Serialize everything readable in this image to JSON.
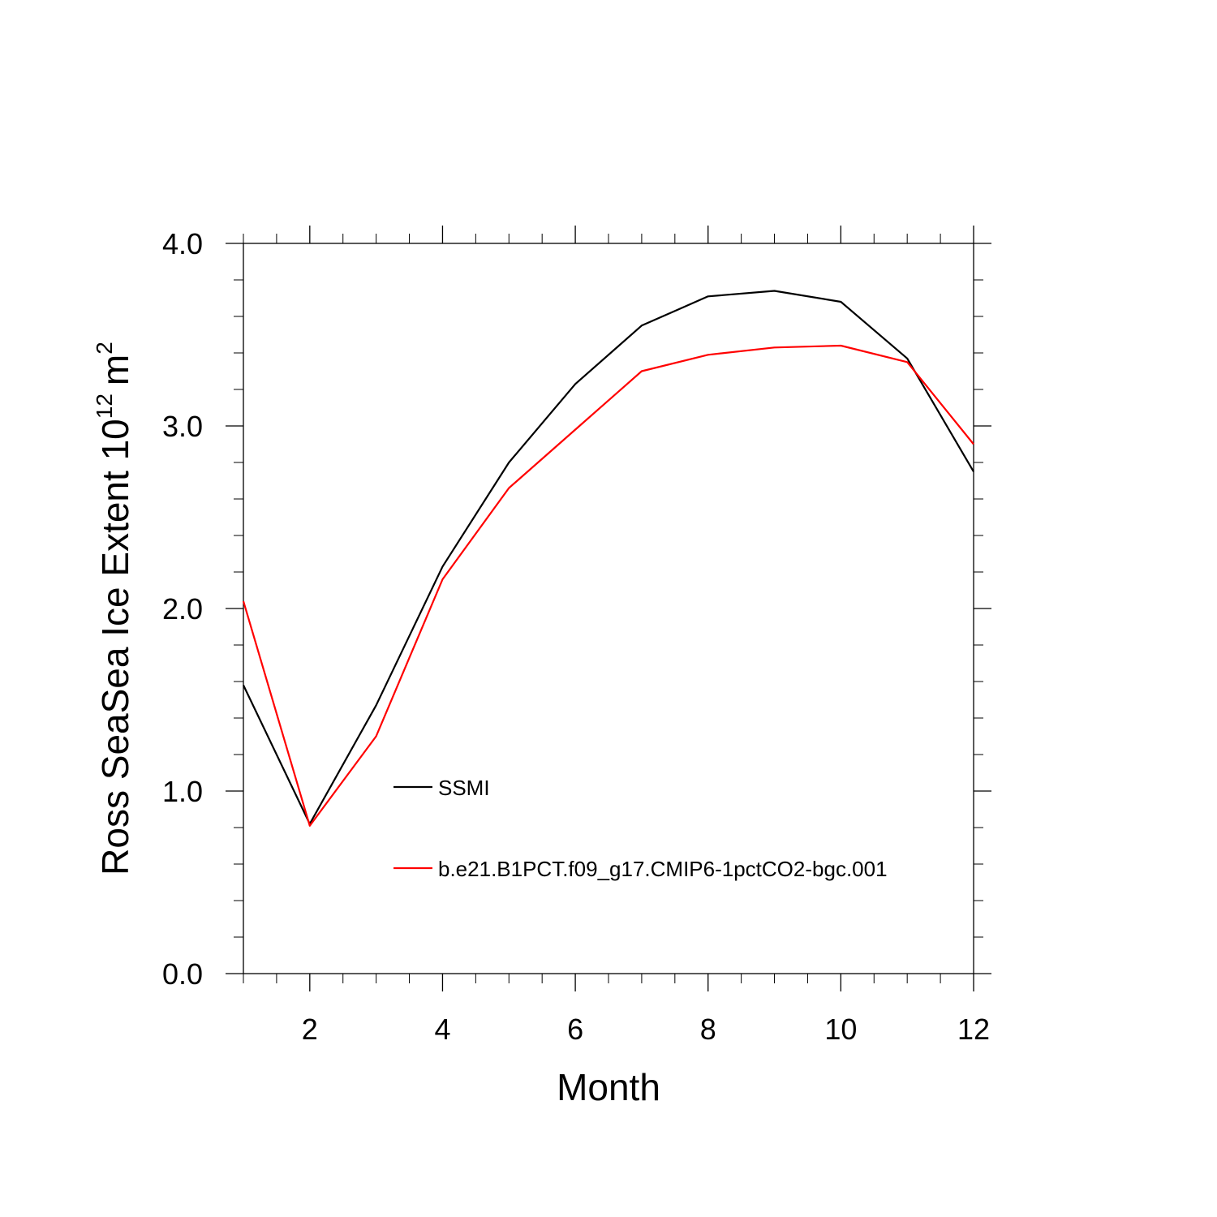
{
  "chart_data": {
    "type": "line",
    "title": "",
    "xlabel": "Month",
    "ylabel": {
      "main": "Ross SeaSea Ice Extent 10",
      "exponent": "12",
      "unit": "m",
      "unit_exponent": "2"
    },
    "xlim": [
      1,
      12
    ],
    "ylim": [
      0,
      4
    ],
    "xticks": [
      2,
      4,
      6,
      8,
      10,
      12
    ],
    "xtick_labels": [
      "2",
      "4",
      "6",
      "8",
      "10",
      "12"
    ],
    "yticks": [
      0,
      1,
      2,
      3,
      4
    ],
    "ytick_labels": [
      "0.0",
      "1.0",
      "2.0",
      "3.0",
      "4.0"
    ],
    "grid": false,
    "legend_position": "center",
    "x": [
      1,
      2,
      3,
      4,
      5,
      6,
      7,
      8,
      9,
      10,
      11,
      12
    ],
    "series": [
      {
        "name": "SSMI",
        "color": "#000000",
        "values": [
          1.58,
          0.82,
          1.47,
          2.23,
          2.8,
          3.23,
          3.55,
          3.71,
          3.74,
          3.68,
          3.37,
          2.75
        ]
      },
      {
        "name": "b.e21.B1PCT.f09_g17.CMIP6-1pctCO2-bgc.001",
        "color": "#ff0000",
        "values": [
          2.04,
          0.81,
          1.3,
          2.16,
          2.66,
          2.98,
          3.3,
          3.39,
          3.43,
          3.44,
          3.35,
          2.9
        ]
      }
    ]
  }
}
